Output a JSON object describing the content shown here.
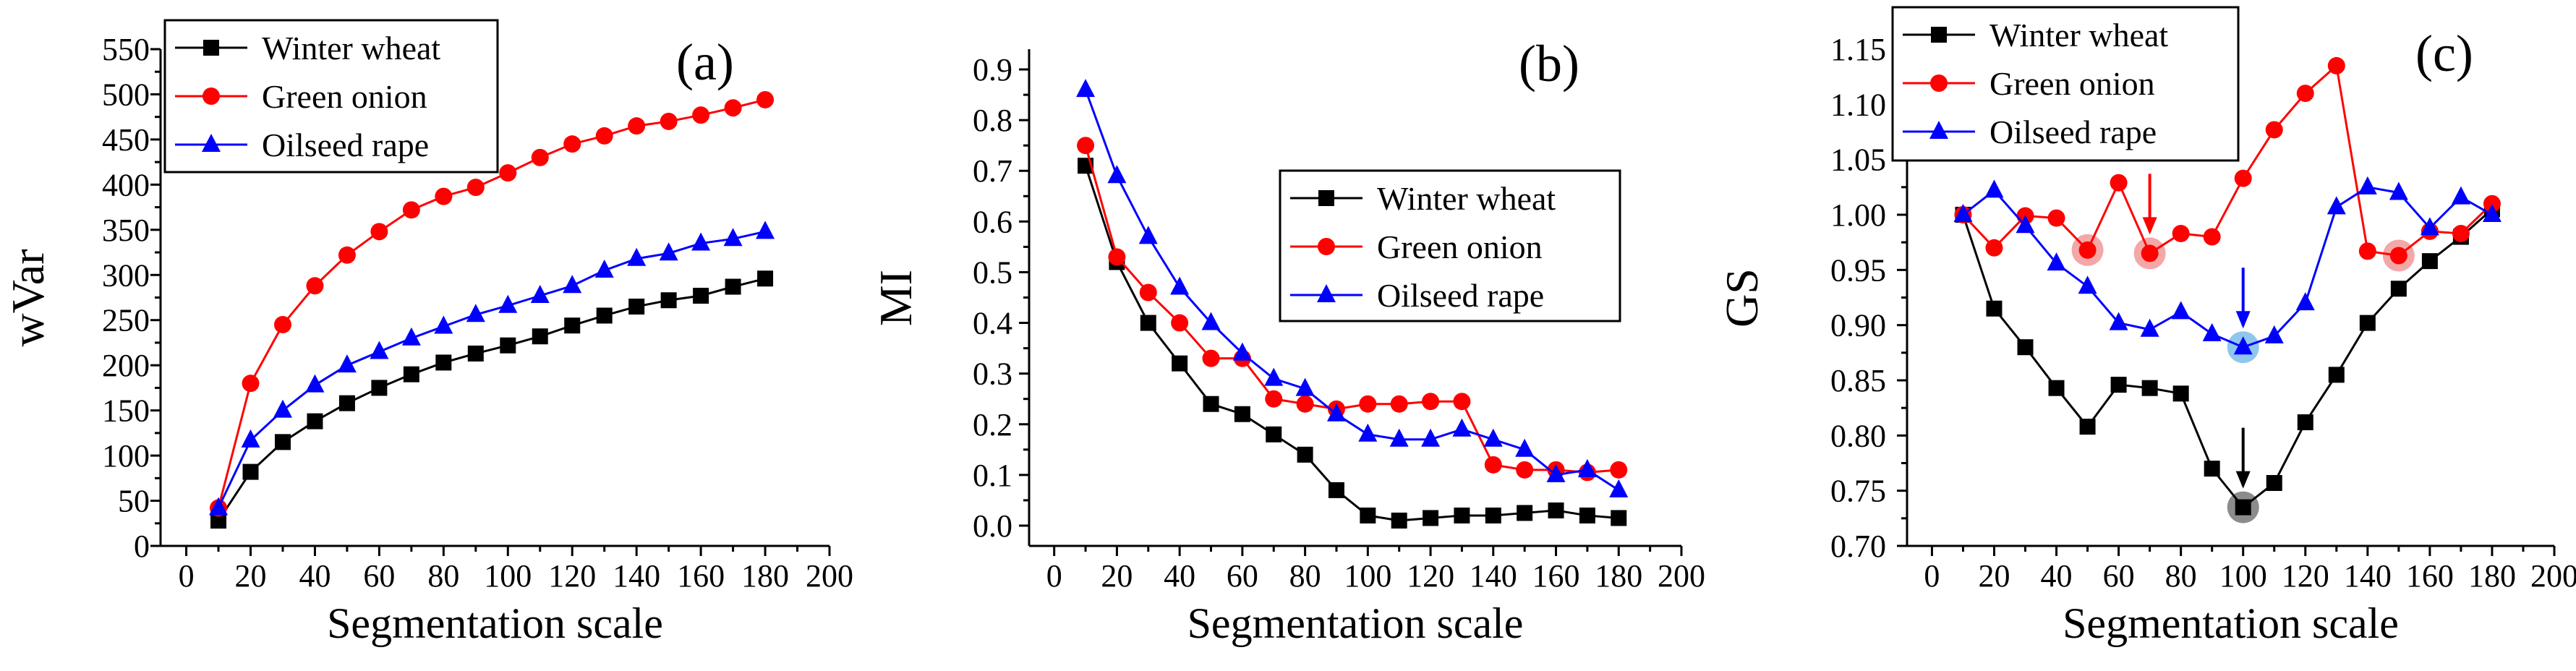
{
  "chart_data": [
    {
      "type": "line",
      "panel_label": "(a)",
      "xlabel": "Segmentation scale",
      "ylabel": "wVar",
      "xlim": [
        -8,
        200
      ],
      "ylim": [
        0,
        550
      ],
      "xticks": [
        0,
        20,
        40,
        60,
        80,
        100,
        120,
        140,
        160,
        180,
        200
      ],
      "yticks": [
        0,
        50,
        100,
        150,
        200,
        250,
        300,
        350,
        400,
        450,
        500,
        550
      ],
      "legend_position": "top-left",
      "x": [
        10,
        20,
        30,
        40,
        50,
        60,
        70,
        80,
        90,
        100,
        110,
        120,
        130,
        140,
        150,
        160,
        170,
        180
      ],
      "series": [
        {
          "name": "Winter wheat",
          "color": "#000000",
          "marker": "square",
          "values": [
            28,
            82,
            115,
            138,
            158,
            175,
            190,
            203,
            213,
            222,
            232,
            244,
            255,
            265,
            272,
            277,
            287,
            296
          ]
        },
        {
          "name": "Green onion",
          "color": "#ff0000",
          "marker": "circle",
          "values": [
            42,
            180,
            245,
            288,
            322,
            348,
            372,
            387,
            397,
            413,
            430,
            445,
            454,
            465,
            470,
            477,
            485,
            494
          ]
        },
        {
          "name": "Oilseed rape",
          "color": "#0000ff",
          "marker": "triangle",
          "values": [
            42,
            117,
            150,
            178,
            200,
            215,
            230,
            243,
            256,
            266,
            277,
            288,
            305,
            318,
            324,
            335,
            340,
            348
          ]
        }
      ]
    },
    {
      "type": "line",
      "panel_label": "(b)",
      "xlabel": "Segmentation scale",
      "ylabel": "MI",
      "xlim": [
        -8,
        200
      ],
      "ylim": [
        -0.04,
        0.94
      ],
      "xticks": [
        0,
        20,
        40,
        60,
        80,
        100,
        120,
        140,
        160,
        180,
        200
      ],
      "yticks": [
        0.0,
        0.1,
        0.2,
        0.3,
        0.4,
        0.5,
        0.6,
        0.7,
        0.8,
        0.9
      ],
      "ytick_labels": [
        "0.0",
        "0.1",
        "0.2",
        "0.3",
        "0.4",
        "0.5",
        "0.6",
        "0.7",
        "0.8",
        "0.9"
      ],
      "legend_position": "center-right",
      "x": [
        10,
        20,
        30,
        40,
        50,
        60,
        70,
        80,
        90,
        100,
        110,
        120,
        130,
        140,
        150,
        160,
        170,
        180
      ],
      "series": [
        {
          "name": "Winter wheat",
          "color": "#000000",
          "marker": "square",
          "values": [
            0.71,
            0.52,
            0.4,
            0.32,
            0.24,
            0.22,
            0.18,
            0.14,
            0.07,
            0.02,
            0.01,
            0.015,
            0.02,
            0.02,
            0.025,
            0.03,
            0.02,
            0.015
          ]
        },
        {
          "name": "Green onion",
          "color": "#ff0000",
          "marker": "circle",
          "values": [
            0.75,
            0.53,
            0.46,
            0.4,
            0.33,
            0.33,
            0.25,
            0.24,
            0.23,
            0.24,
            0.24,
            0.245,
            0.245,
            0.12,
            0.11,
            0.11,
            0.105,
            0.11
          ]
        },
        {
          "name": "Oilseed rape",
          "color": "#0000ff",
          "marker": "triangle",
          "values": [
            0.86,
            0.69,
            0.57,
            0.47,
            0.4,
            0.34,
            0.29,
            0.27,
            0.22,
            0.18,
            0.17,
            0.17,
            0.19,
            0.17,
            0.15,
            0.1,
            0.11,
            0.07
          ]
        }
      ]
    },
    {
      "type": "line",
      "panel_label": "(c)",
      "xlabel": "Segmentation scale",
      "ylabel": "GS",
      "xlim": [
        -8,
        200
      ],
      "ylim": [
        0.7,
        1.15
      ],
      "xticks": [
        0,
        20,
        40,
        60,
        80,
        100,
        120,
        140,
        160,
        180,
        200
      ],
      "yticks": [
        0.7,
        0.75,
        0.8,
        0.85,
        0.9,
        0.95,
        1.0,
        1.05,
        1.1,
        1.15
      ],
      "ytick_labels": [
        "0.70",
        "0.75",
        "0.80",
        "0.85",
        "0.90",
        "0.95",
        "1.00",
        "1.05",
        "1.10",
        "1.15"
      ],
      "legend_position": "top-left",
      "x": [
        10,
        20,
        30,
        40,
        50,
        60,
        70,
        80,
        90,
        100,
        110,
        120,
        130,
        140,
        150,
        160,
        170,
        180
      ],
      "series": [
        {
          "name": "Winter wheat",
          "color": "#000000",
          "marker": "square",
          "values": [
            1.0,
            0.915,
            0.88,
            0.843,
            0.808,
            0.846,
            0.843,
            0.838,
            0.77,
            0.735,
            0.757,
            0.812,
            0.855,
            0.902,
            0.933,
            0.958,
            0.98,
            1.005
          ]
        },
        {
          "name": "Green onion",
          "color": "#ff0000",
          "marker": "circle",
          "values": [
            1.0,
            0.97,
            0.999,
            0.997,
            0.968,
            1.029,
            0.965,
            0.983,
            0.98,
            1.033,
            1.077,
            1.11,
            1.135,
            0.967,
            0.963,
            0.985,
            0.983,
            1.01
          ]
        },
        {
          "name": "Oilseed rape",
          "color": "#0000ff",
          "marker": "triangle",
          "values": [
            1.0,
            1.022,
            0.99,
            0.956,
            0.935,
            0.902,
            0.896,
            0.912,
            0.892,
            0.88,
            0.89,
            0.92,
            1.007,
            1.025,
            1.02,
            0.988,
            1.016,
            1.0
          ]
        }
      ],
      "highlights": [
        {
          "series": "Green onion",
          "x": 50,
          "arrow": false
        },
        {
          "series": "Green onion",
          "x": 70,
          "arrow": true
        },
        {
          "series": "Green onion",
          "x": 150,
          "arrow": false
        },
        {
          "series": "Oilseed rape",
          "x": 100,
          "arrow": true
        },
        {
          "series": "Winter wheat",
          "x": 100,
          "arrow": true
        }
      ]
    }
  ]
}
